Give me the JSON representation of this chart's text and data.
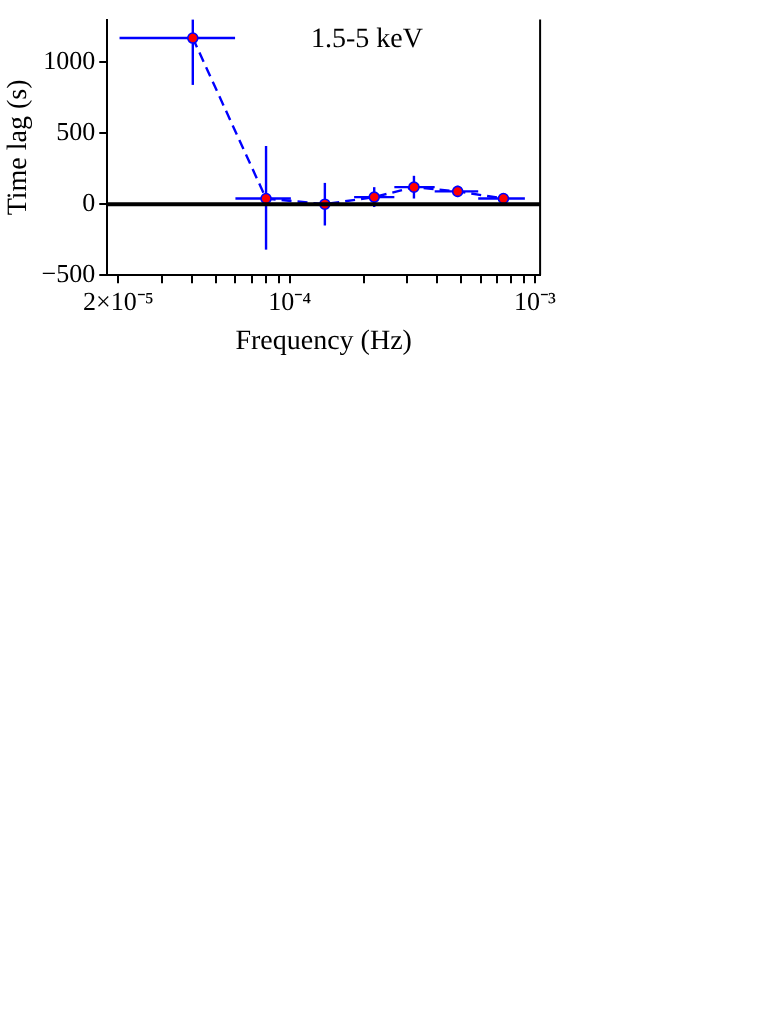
{
  "chart_data": {
    "type": "line",
    "xlabel": "Frequency (Hz)",
    "ylabel": "Time lag (s)",
    "annotations": [
      "1.5-5 keV"
    ],
    "log": "x",
    "xlim": [
      1.8e-05,
      0.00105
    ],
    "ylim": [
      -500,
      1300
    ],
    "xticks": [
      {
        "value": 2e-05,
        "label": "2×10⁻⁵"
      },
      {
        "value": 3e-05,
        "label": null
      },
      {
        "value": 4e-05,
        "label": null
      },
      {
        "value": 5e-05,
        "label": null
      },
      {
        "value": 6e-05,
        "label": null
      },
      {
        "value": 7e-05,
        "label": null
      },
      {
        "value": 8e-05,
        "label": null
      },
      {
        "value": 9e-05,
        "label": null
      },
      {
        "value": 0.0001,
        "label": "10⁻⁴"
      },
      {
        "value": 0.0002,
        "label": null
      },
      {
        "value": 0.0003,
        "label": null
      },
      {
        "value": 0.0004,
        "label": null
      },
      {
        "value": 0.0005,
        "label": null
      },
      {
        "value": 0.0006,
        "label": null
      },
      {
        "value": 0.0007,
        "label": null
      },
      {
        "value": 0.0008,
        "label": null
      },
      {
        "value": 0.0009,
        "label": null
      },
      {
        "value": 0.001,
        "label": "10⁻³"
      }
    ],
    "yticks": [
      -500,
      0,
      500,
      1000
    ],
    "grid": false,
    "legend": false,
    "marker": "circle",
    "line_style": "dashed",
    "ref_lines": [
      {
        "axis": "y",
        "value": 0,
        "color": "#000000"
      }
    ],
    "series": [
      {
        "color": "#0000ff",
        "x": [
          4.02e-05,
          8e-05,
          0.000139,
          0.000221,
          0.000321,
          0.000484,
          0.000744
        ],
        "values": [
          1170,
          40,
          0,
          50,
          120,
          90,
          40
        ],
        "errors": [
          [
            840,
            1300
          ],
          [
            -320,
            410
          ],
          150,
          70,
          80,
          40,
          30
        ],
        "xerrors": [
          [
            2.02e-05,
            5.98e-05
          ],
          [
            6e-05,
            0.000101
          ],
          [
            0.000101,
            0.000183
          ],
          [
            0.000183,
            0.000267
          ],
          [
            0.000267,
            0.00039
          ],
          [
            0.00039,
            0.000587
          ],
          [
            0.000587,
            0.00091
          ]
        ]
      }
    ]
  }
}
